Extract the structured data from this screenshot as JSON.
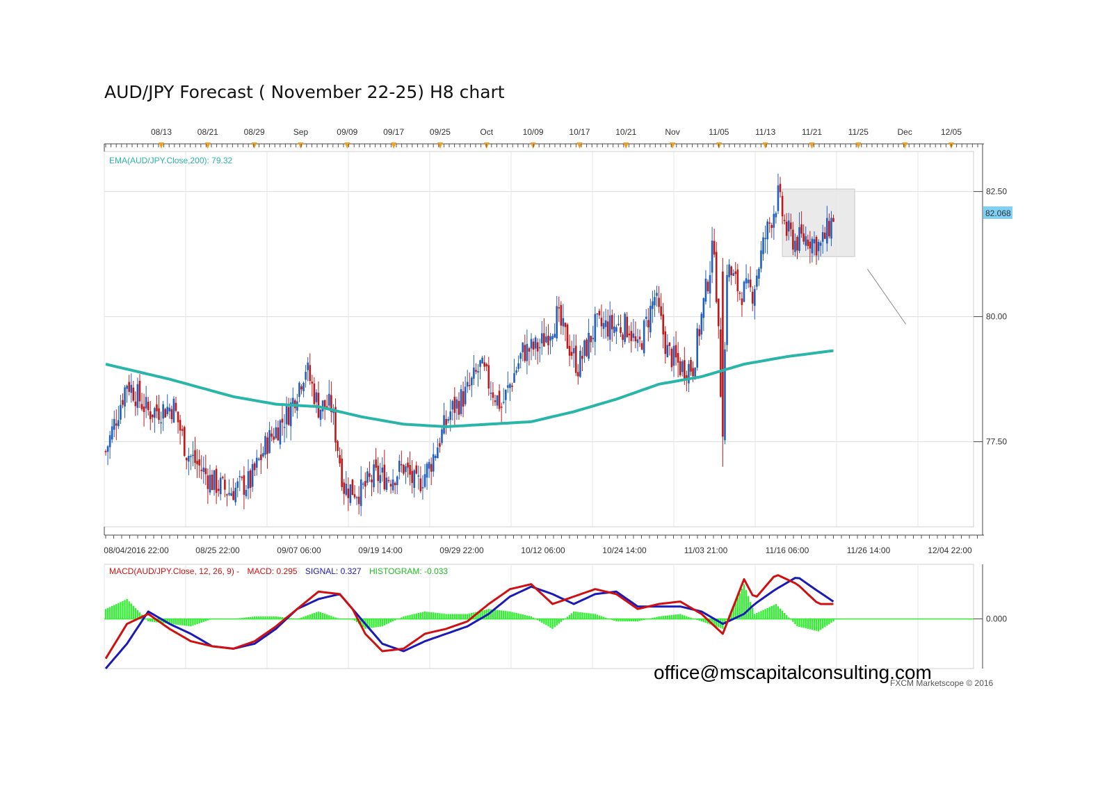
{
  "title": "AUD/JPY Forecast ( November 22-25) H8 chart",
  "watermark_email": "office@mscapitalconsulting.com",
  "copyright": "FXCM Marketscope © 2016",
  "colors": {
    "bull": "#1f5fbf",
    "bear": "#c01818",
    "ema": "#2ab5aa",
    "macd": "#d01010",
    "signal": "#1a1ab8",
    "histogram": "#33ee33",
    "price_badge": "#7fd0f5",
    "highlight_box": "#e6e6e6"
  },
  "chart_data": [
    {
      "type": "candlestick",
      "timeframe": "H8",
      "ylim": [
        75.8,
        83.3
      ],
      "yticks": [
        "82.50",
        "80.00",
        "77.50"
      ],
      "ytick_values": [
        82.5,
        80.0,
        77.5
      ],
      "current_price": "82.068",
      "ema_label": "EMA(AUD/JPY.Close,200): 79.32",
      "top_date_labels": [
        "08/13",
        "08/21",
        "08/29",
        "Sep",
        "09/09",
        "09/17",
        "09/25",
        "Oct",
        "10/09",
        "10/17",
        "10/21",
        "Nov",
        "11/05",
        "11/13",
        "11/21",
        "11/25",
        "Dec",
        "12/05"
      ],
      "bottom_date_labels": [
        "08/04/2016 22:00",
        "08/25 22:00",
        "09/07 06:00",
        "09/19 14:00",
        "09/29 22:00",
        "10/12 06:00",
        "10/24 14:00",
        "11/03 21:00",
        "11/16 06:00",
        "11/26 14:00",
        "12/04 22:00"
      ],
      "close_path": [
        [
          0,
          77.3
        ],
        [
          10,
          78.7
        ],
        [
          20,
          78.1
        ],
        [
          32,
          78.2
        ],
        [
          38,
          77.3
        ],
        [
          50,
          76.7
        ],
        [
          58,
          76.5
        ],
        [
          68,
          76.7
        ],
        [
          76,
          77.5
        ],
        [
          86,
          78.1
        ],
        [
          94,
          79.0
        ],
        [
          100,
          78.2
        ],
        [
          106,
          78.2
        ],
        [
          112,
          76.6
        ],
        [
          120,
          76.5
        ],
        [
          126,
          76.8
        ],
        [
          134,
          76.8
        ],
        [
          140,
          77.0
        ],
        [
          146,
          76.6
        ],
        [
          152,
          77.0
        ],
        [
          162,
          78.1
        ],
        [
          170,
          78.5
        ],
        [
          176,
          79.0
        ],
        [
          186,
          78.2
        ],
        [
          196,
          79.3
        ],
        [
          204,
          79.4
        ],
        [
          212,
          80.0
        ],
        [
          222,
          79.0
        ],
        [
          230,
          79.8
        ],
        [
          238,
          79.8
        ],
        [
          246,
          79.8
        ],
        [
          250,
          79.3
        ],
        [
          258,
          80.4
        ],
        [
          264,
          79.3
        ],
        [
          270,
          79.0
        ],
        [
          276,
          79.0
        ],
        [
          280,
          80.0
        ],
        [
          286,
          81.5
        ],
        [
          290,
          77.6
        ],
        [
          292,
          81.0
        ],
        [
          298,
          80.5
        ],
        [
          304,
          80.5
        ],
        [
          310,
          81.6
        ],
        [
          316,
          82.4
        ],
        [
          320,
          81.7
        ],
        [
          324,
          81.5
        ],
        [
          330,
          81.6
        ],
        [
          336,
          81.4
        ],
        [
          342,
          82.0
        ]
      ],
      "ema_path": [
        [
          0,
          79.05
        ],
        [
          30,
          78.75
        ],
        [
          60,
          78.4
        ],
        [
          80,
          78.25
        ],
        [
          100,
          78.2
        ],
        [
          120,
          78.0
        ],
        [
          140,
          77.85
        ],
        [
          160,
          77.8
        ],
        [
          180,
          77.85
        ],
        [
          200,
          77.9
        ],
        [
          220,
          78.1
        ],
        [
          240,
          78.35
        ],
        [
          260,
          78.65
        ],
        [
          280,
          78.8
        ],
        [
          300,
          79.05
        ],
        [
          320,
          79.2
        ],
        [
          342,
          79.32
        ]
      ],
      "forecast_box": {
        "bar_start": 318,
        "bar_end": 352,
        "price_low": 81.2,
        "price_high": 82.55
      },
      "forecast_line": {
        "from": [
          358,
          80.95
        ],
        "to": [
          376,
          79.85
        ]
      }
    },
    {
      "type": "line",
      "title": "MACD(AUD/JPY.Close, 12, 26, 9) -",
      "macd_label": "MACD: 0.295",
      "signal_label": "SIGNAL: 0.327",
      "histogram_label": "HISTOGRAM: -0.033",
      "ylim": [
        -1.0,
        1.1
      ],
      "ytick": "0.000",
      "macd_path": [
        [
          0,
          -0.8
        ],
        [
          10,
          -0.1
        ],
        [
          20,
          0.1
        ],
        [
          30,
          -0.2
        ],
        [
          40,
          -0.45
        ],
        [
          50,
          -0.55
        ],
        [
          60,
          -0.6
        ],
        [
          70,
          -0.45
        ],
        [
          80,
          -0.15
        ],
        [
          90,
          0.2
        ],
        [
          100,
          0.55
        ],
        [
          110,
          0.5
        ],
        [
          116,
          0.2
        ],
        [
          122,
          -0.3
        ],
        [
          130,
          -0.65
        ],
        [
          140,
          -0.6
        ],
        [
          150,
          -0.3
        ],
        [
          160,
          -0.2
        ],
        [
          170,
          -0.05
        ],
        [
          180,
          0.3
        ],
        [
          190,
          0.6
        ],
        [
          200,
          0.7
        ],
        [
          210,
          0.3
        ],
        [
          220,
          0.45
        ],
        [
          230,
          0.6
        ],
        [
          240,
          0.5
        ],
        [
          250,
          0.2
        ],
        [
          260,
          0.3
        ],
        [
          270,
          0.35
        ],
        [
          280,
          0.1
        ],
        [
          290,
          -0.3
        ],
        [
          300,
          0.8
        ],
        [
          305,
          0.4
        ],
        [
          315,
          0.9
        ],
        [
          325,
          0.7
        ],
        [
          335,
          0.3
        ],
        [
          342,
          0.3
        ]
      ],
      "signal_path": [
        [
          0,
          -1.0
        ],
        [
          10,
          -0.5
        ],
        [
          20,
          0.15
        ],
        [
          30,
          -0.1
        ],
        [
          40,
          -0.3
        ],
        [
          50,
          -0.55
        ],
        [
          60,
          -0.6
        ],
        [
          70,
          -0.5
        ],
        [
          80,
          -0.2
        ],
        [
          90,
          0.2
        ],
        [
          100,
          0.4
        ],
        [
          110,
          0.5
        ],
        [
          120,
          0.0
        ],
        [
          130,
          -0.5
        ],
        [
          140,
          -0.65
        ],
        [
          150,
          -0.45
        ],
        [
          160,
          -0.3
        ],
        [
          170,
          -0.15
        ],
        [
          180,
          0.1
        ],
        [
          190,
          0.45
        ],
        [
          200,
          0.65
        ],
        [
          210,
          0.5
        ],
        [
          220,
          0.3
        ],
        [
          230,
          0.5
        ],
        [
          240,
          0.55
        ],
        [
          250,
          0.25
        ],
        [
          260,
          0.25
        ],
        [
          270,
          0.25
        ],
        [
          280,
          0.15
        ],
        [
          290,
          -0.1
        ],
        [
          300,
          0.1
        ],
        [
          305,
          0.3
        ],
        [
          315,
          0.6
        ],
        [
          325,
          0.85
        ],
        [
          335,
          0.55
        ],
        [
          342,
          0.35
        ]
      ]
    }
  ]
}
